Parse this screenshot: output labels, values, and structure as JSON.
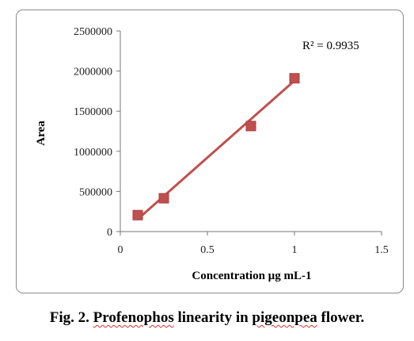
{
  "chart_data": {
    "type": "scatter",
    "title": "",
    "xlabel": "Concentration  µg mL-1",
    "ylabel": "Area",
    "xlim": [
      0,
      1.5
    ],
    "ylim": [
      0,
      2500000
    ],
    "x_ticks": [
      "0",
      "0.5",
      "1",
      "1.5"
    ],
    "y_ticks": [
      "0",
      "500000",
      "1000000",
      "1500000",
      "2000000",
      "2500000"
    ],
    "grid": false,
    "legend": "none",
    "series": [
      {
        "x": [
          0.1,
          0.25,
          0.75,
          1.0
        ],
        "y": [
          205000,
          415000,
          1315000,
          1910000
        ],
        "marker": "square",
        "color": "#c0504d"
      }
    ],
    "trendline": {
      "x": [
        0.1,
        1.0
      ],
      "y": [
        155000,
        1880000
      ],
      "color": "#c0504d"
    },
    "annotation": "R² = 0.9935"
  },
  "caption": {
    "prefix": "Fig. 2. ",
    "word1": "Profenophos",
    "middle1": " linearity in ",
    "word2": "pigeonpea",
    "suffix": " flower."
  }
}
